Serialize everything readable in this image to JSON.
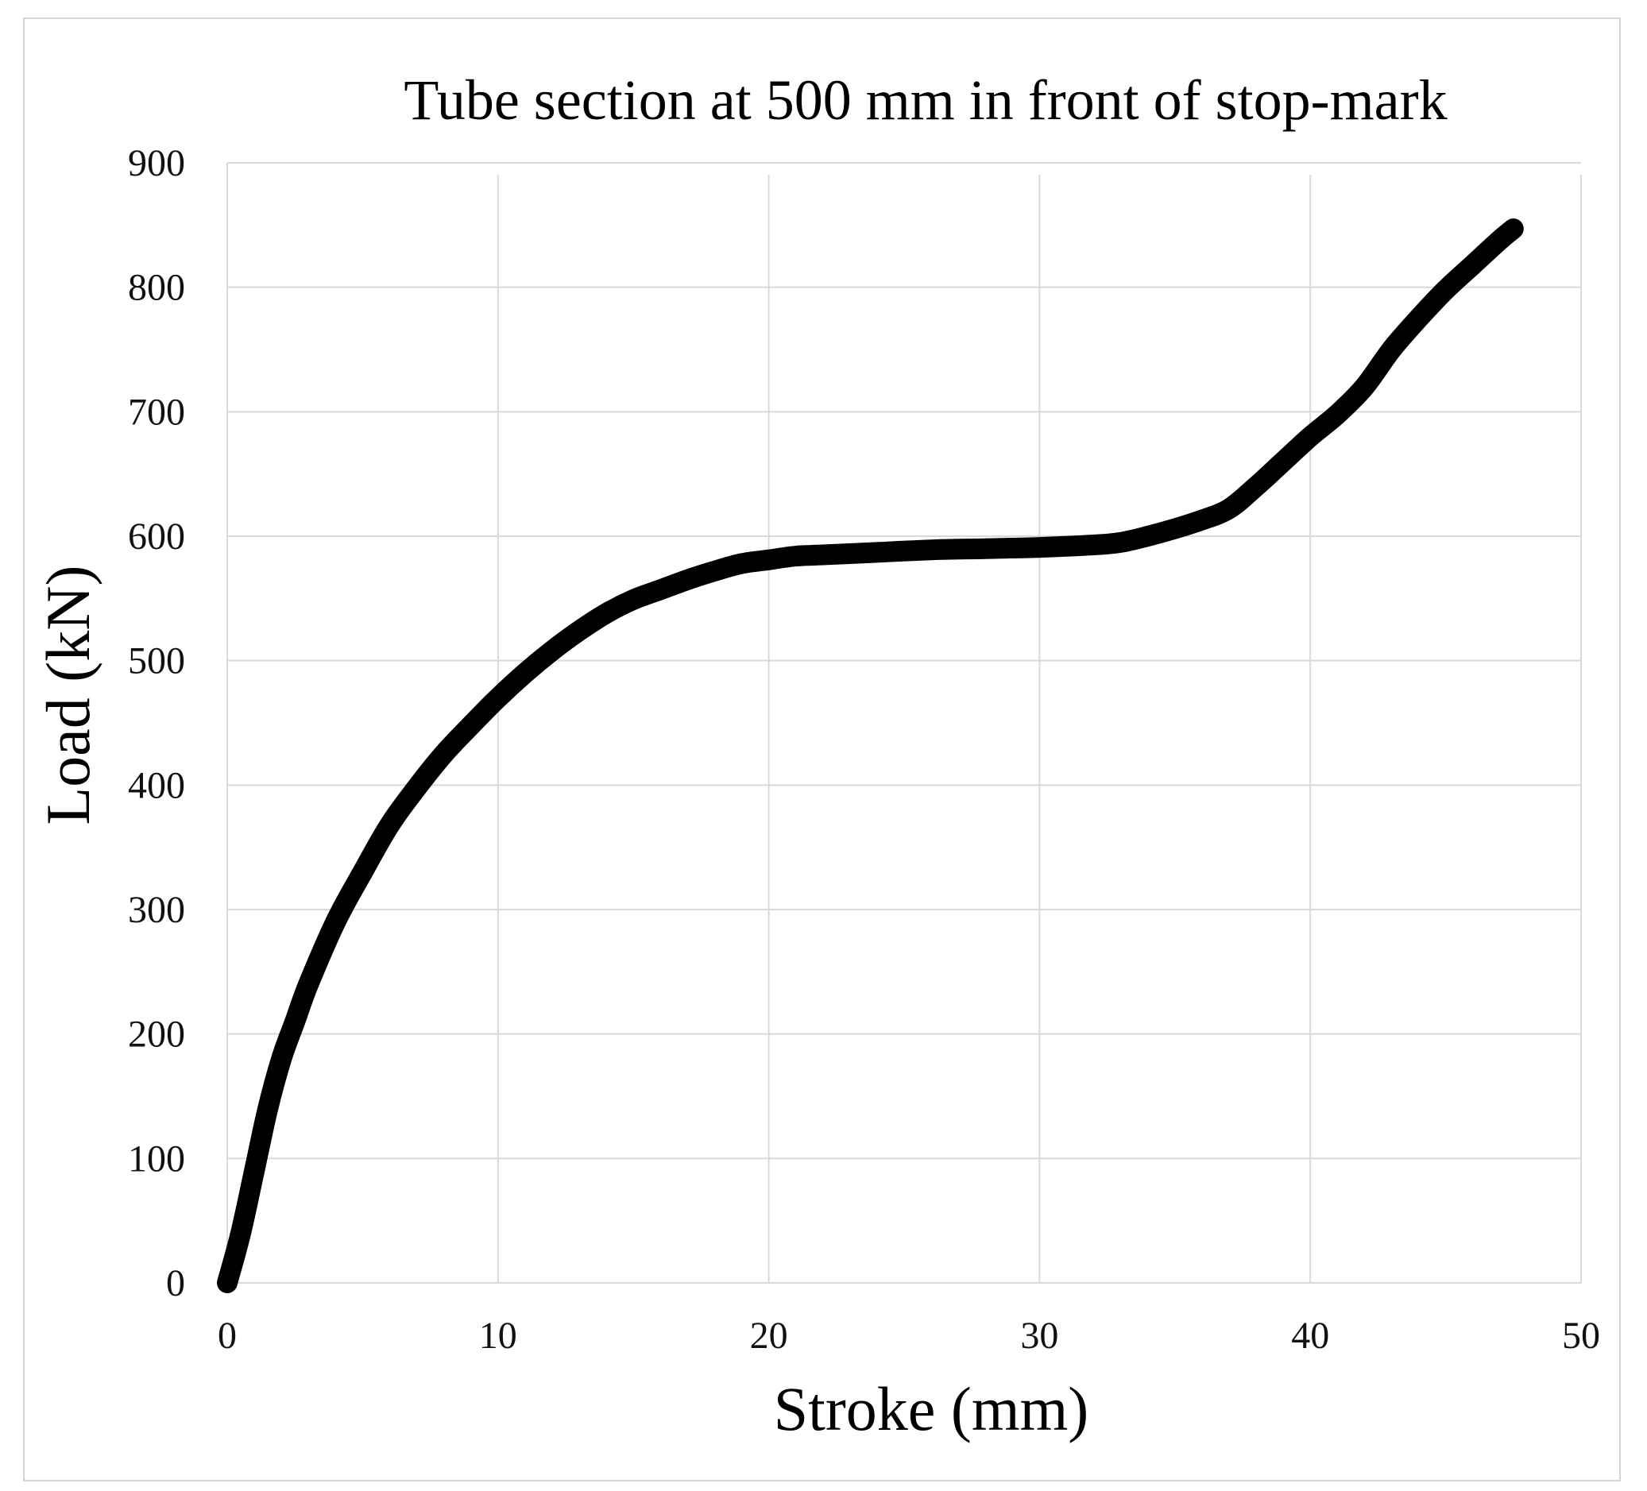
{
  "chart_data": {
    "type": "line",
    "title": "Tube section at 500 mm in front of stop-mark",
    "xlabel": "Stroke (mm)",
    "ylabel": "Load (kN)",
    "xlim": [
      0,
      50
    ],
    "ylim": [
      0,
      900
    ],
    "x_ticks": [
      "0",
      "10",
      "20",
      "30",
      "40",
      "50"
    ],
    "y_ticks": [
      "0",
      "100",
      "200",
      "300",
      "400",
      "500",
      "600",
      "700",
      "800",
      "900"
    ],
    "grid": true,
    "legend": "none",
    "line_color": "#000000",
    "series": [
      {
        "x": [
          0,
          0.5,
          1.0,
          1.5,
          2.0,
          2.5,
          3.0,
          4.0,
          5.0,
          6.0,
          7.0,
          8.0,
          9.0,
          10.0,
          11.0,
          12.0,
          13.0,
          14.0,
          15.0,
          16.0,
          17.0,
          18.0,
          19.0,
          20.0,
          21.0,
          22.0,
          24.0,
          26.0,
          28.0,
          30.0,
          32.0,
          33.0,
          34.0,
          35.0,
          36.0,
          37.0,
          38.0,
          39.0,
          40.0,
          41.0,
          42.0,
          43.0,
          44.0,
          45.0,
          46.0,
          47.0,
          47.5
        ],
        "y": [
          0,
          40,
          90,
          140,
          180,
          210,
          240,
          290,
          330,
          368,
          398,
          425,
          448,
          470,
          490,
          508,
          524,
          538,
          549,
          557,
          565,
          572,
          578,
          581,
          584,
          585,
          587,
          589,
          590,
          591,
          593,
          595,
          600,
          606,
          613,
          622,
          640,
          660,
          680,
          698,
          720,
          750,
          775,
          798,
          818,
          838,
          847
        ]
      }
    ]
  }
}
